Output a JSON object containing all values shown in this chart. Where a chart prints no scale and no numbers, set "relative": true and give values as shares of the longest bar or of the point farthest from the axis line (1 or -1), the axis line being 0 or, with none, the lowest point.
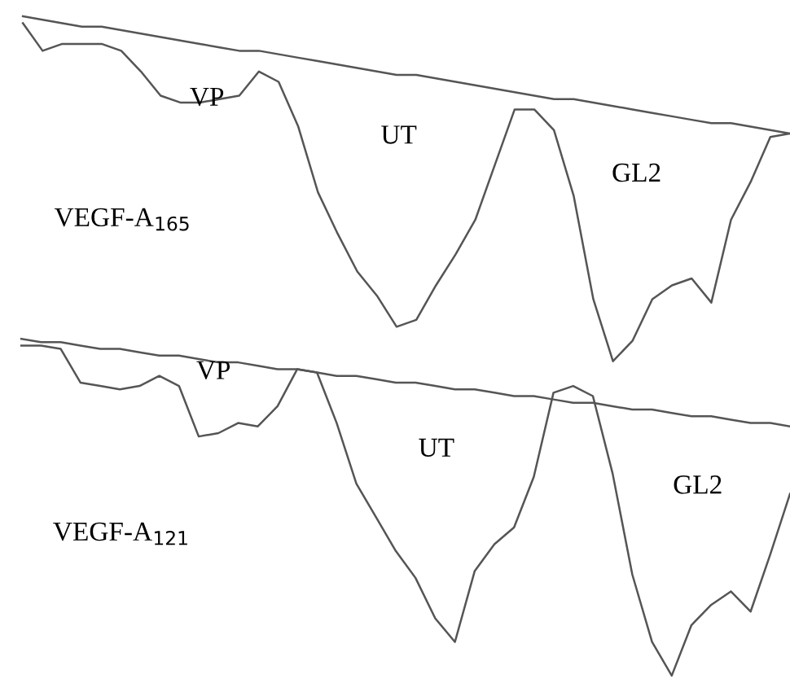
{
  "chart_data": [
    {
      "type": "line",
      "relative": true,
      "annotations": [
        "VP",
        "UT",
        "GL2",
        "VEGF-A$_{165}$"
      ],
      "categories": [
        null,
        null,
        null,
        null,
        null,
        null,
        null,
        null,
        null,
        null,
        null,
        null,
        null,
        null,
        null,
        null,
        null,
        null,
        null,
        null,
        null,
        null,
        null,
        null,
        null,
        null,
        null,
        null,
        null,
        null,
        null,
        null,
        null,
        null,
        null,
        null,
        null,
        null,
        null,
        null
      ],
      "series": [
        {
          "color": "#555555",
          "values": [
            0.98,
            0.9,
            0.92,
            0.92,
            0.92,
            0.9,
            0.84,
            0.77,
            0.75,
            0.75,
            0.76,
            0.77,
            0.84,
            0.81,
            0.68,
            0.49,
            0.37,
            0.26,
            0.19,
            0.1,
            0.12,
            0.22,
            0.31,
            0.41,
            0.57,
            0.73,
            0.73,
            0.67,
            0.48,
            0.18,
            0,
            0.06,
            0.18,
            0.22,
            0.24,
            0.17,
            0.41,
            0.52,
            0.65,
            0.66
          ]
        },
        {
          "color": "#555555",
          "values": [
            1.0,
            0.99,
            0.98,
            0.97,
            0.97,
            0.96,
            0.95,
            0.94,
            0.93,
            0.92,
            0.91,
            0.9,
            0.9,
            0.89,
            0.88,
            0.87,
            0.86,
            0.85,
            0.84,
            0.83,
            0.83,
            0.82,
            0.81,
            0.8,
            0.79,
            0.78,
            0.77,
            0.76,
            0.76,
            0.75,
            0.74,
            0.73,
            0.72,
            0.71,
            0.7,
            0.69,
            0.69,
            0.68,
            0.67,
            0.66
          ]
        }
      ]
    },
    {
      "type": "line",
      "relative": true,
      "annotations": [
        "VP",
        "UT",
        "GL2",
        "VEGF-A$_{121}$"
      ],
      "categories": [
        null,
        null,
        null,
        null,
        null,
        null,
        null,
        null,
        null,
        null,
        null,
        null,
        null,
        null,
        null,
        null,
        null,
        null,
        null,
        null,
        null,
        null,
        null,
        null,
        null,
        null,
        null,
        null,
        null,
        null,
        null,
        null,
        null,
        null,
        null,
        null,
        null,
        null,
        null,
        null
      ],
      "series": [
        {
          "color": "#555555",
          "values": [
            0.98,
            0.98,
            0.97,
            0.87,
            0.86,
            0.85,
            0.86,
            0.89,
            0.86,
            0.71,
            0.72,
            0.75,
            0.74,
            0.8,
            0.91,
            0.9,
            0.75,
            0.57,
            0.47,
            0.37,
            0.29,
            0.17,
            0.1,
            0.31,
            0.39,
            0.44,
            0.59,
            0.84,
            0.86,
            0.83,
            0.6,
            0.3,
            0.1,
            0,
            0.15,
            0.21,
            0.25,
            0.19,
            0.36,
            0.54
          ]
        },
        {
          "color": "#555555",
          "values": [
            1.0,
            0.99,
            0.99,
            0.98,
            0.97,
            0.97,
            0.96,
            0.95,
            0.95,
            0.94,
            0.93,
            0.93,
            0.92,
            0.91,
            0.91,
            0.9,
            0.89,
            0.89,
            0.88,
            0.87,
            0.87,
            0.86,
            0.85,
            0.85,
            0.84,
            0.83,
            0.83,
            0.82,
            0.81,
            0.81,
            0.8,
            0.79,
            0.79,
            0.78,
            0.77,
            0.77,
            0.76,
            0.75,
            0.75,
            0.74
          ]
        }
      ]
    }
  ]
}
